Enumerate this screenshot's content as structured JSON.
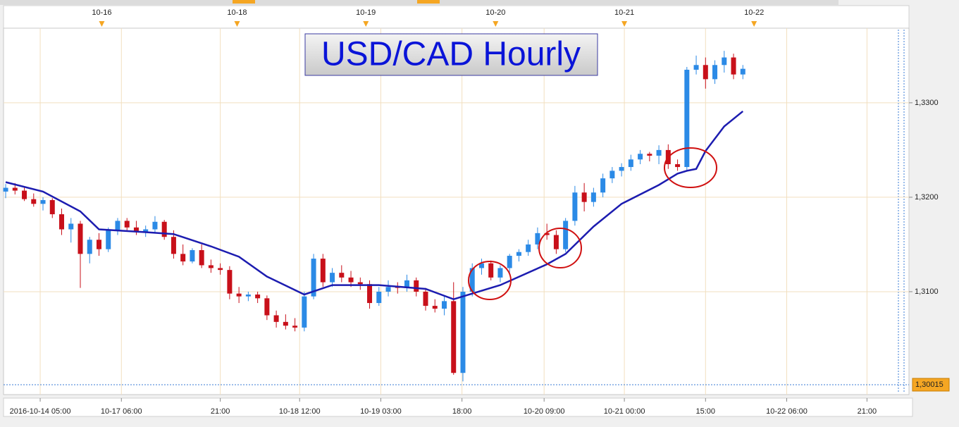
{
  "chart_data": {
    "type": "candlestick",
    "title": "USD/CAD Hourly",
    "candles": {
      "up_color": "#2b8ae6",
      "down_color": "#c8101a",
      "open": [
        1.3206,
        1.321,
        1.3207,
        1.3198,
        1.3193,
        1.3197,
        1.3182,
        1.3166,
        1.3172,
        1.314,
        1.3155,
        1.3145,
        1.3165,
        1.3175,
        1.3168,
        1.3163,
        1.3166,
        1.3174,
        1.3158,
        1.314,
        1.3132,
        1.3144,
        1.3128,
        1.3125,
        1.3123,
        1.3098,
        1.3095,
        1.3097,
        1.3093,
        1.3075,
        1.3068,
        1.3064,
        1.3062,
        1.3095,
        1.3135,
        1.311,
        1.312,
        1.3115,
        1.311,
        1.3108,
        1.3088,
        1.31,
        1.3105,
        1.3104,
        1.3112,
        1.31,
        1.3085,
        1.3082,
        1.309,
        1.3014,
        1.31,
        1.3125,
        1.313,
        1.3115,
        1.3125,
        1.3138,
        1.3142,
        1.315,
        1.3162,
        1.316,
        1.3145,
        1.3175,
        1.3205,
        1.3195,
        1.3205,
        1.322,
        1.3228,
        1.3232,
        1.324,
        1.3246,
        1.3244,
        1.325,
        1.3235,
        1.3232,
        1.3335,
        1.334,
        1.3325,
        1.334,
        1.3348,
        1.333
      ],
      "high": [
        1.3214,
        1.3215,
        1.321,
        1.3204,
        1.32,
        1.3199,
        1.3188,
        1.3178,
        1.3175,
        1.3158,
        1.3162,
        1.3168,
        1.3178,
        1.3178,
        1.3175,
        1.317,
        1.318,
        1.3176,
        1.3165,
        1.315,
        1.3146,
        1.315,
        1.3134,
        1.313,
        1.3127,
        1.3105,
        1.31,
        1.31,
        1.3096,
        1.308,
        1.3076,
        1.3072,
        1.31,
        1.314,
        1.314,
        1.3125,
        1.3128,
        1.3122,
        1.3115,
        1.3112,
        1.3105,
        1.3112,
        1.311,
        1.3118,
        1.3115,
        1.3104,
        1.3092,
        1.3095,
        1.311,
        1.3105,
        1.313,
        1.3135,
        1.3133,
        1.3128,
        1.314,
        1.3145,
        1.3155,
        1.3168,
        1.3172,
        1.3165,
        1.3178,
        1.3212,
        1.3215,
        1.321,
        1.3225,
        1.3232,
        1.3236,
        1.3245,
        1.325,
        1.3248,
        1.3255,
        1.3256,
        1.324,
        1.3338,
        1.335,
        1.3348,
        1.3345,
        1.3355,
        1.3352,
        1.334
      ],
      "low": [
        1.3199,
        1.3203,
        1.3196,
        1.319,
        1.3186,
        1.3178,
        1.316,
        1.3152,
        1.3104,
        1.313,
        1.3138,
        1.3142,
        1.316,
        1.3165,
        1.316,
        1.3158,
        1.3162,
        1.3155,
        1.3135,
        1.3128,
        1.313,
        1.3125,
        1.312,
        1.3118,
        1.3092,
        1.3088,
        1.309,
        1.3088,
        1.307,
        1.3062,
        1.306,
        1.3058,
        1.3058,
        1.3092,
        1.3105,
        1.3105,
        1.311,
        1.3105,
        1.3102,
        1.3082,
        1.3085,
        1.3095,
        1.3098,
        1.31,
        1.3095,
        1.308,
        1.3078,
        1.3075,
        1.3012,
        1.3005,
        1.3095,
        1.3118,
        1.3112,
        1.311,
        1.312,
        1.3132,
        1.3138,
        1.3145,
        1.3155,
        1.314,
        1.3142,
        1.317,
        1.3185,
        1.319,
        1.32,
        1.3215,
        1.3222,
        1.3228,
        1.3235,
        1.3238,
        1.3235,
        1.323,
        1.3228,
        1.3228,
        1.333,
        1.3315,
        1.332,
        1.3332,
        1.3325,
        1.3325
      ],
      "close": [
        1.321,
        1.3207,
        1.3198,
        1.3193,
        1.3197,
        1.3182,
        1.3166,
        1.3172,
        1.314,
        1.3155,
        1.3145,
        1.3165,
        1.3175,
        1.3168,
        1.3163,
        1.3166,
        1.3174,
        1.3158,
        1.314,
        1.3132,
        1.3144,
        1.3128,
        1.3125,
        1.3123,
        1.3098,
        1.3095,
        1.3097,
        1.3093,
        1.3075,
        1.3068,
        1.3064,
        1.3062,
        1.3095,
        1.3135,
        1.311,
        1.312,
        1.3115,
        1.311,
        1.3108,
        1.3088,
        1.31,
        1.3105,
        1.3104,
        1.3112,
        1.31,
        1.3085,
        1.3082,
        1.309,
        1.3014,
        1.31,
        1.3125,
        1.313,
        1.3115,
        1.3125,
        1.3138,
        1.3142,
        1.315,
        1.3162,
        1.316,
        1.3145,
        1.3175,
        1.3205,
        1.3195,
        1.3205,
        1.322,
        1.3228,
        1.3232,
        1.324,
        1.3246,
        1.3244,
        1.325,
        1.3235,
        1.3232,
        1.3335,
        1.334,
        1.3325,
        1.334,
        1.3348,
        1.333,
        1.3336
      ]
    },
    "moving_average": {
      "color": "#1c1cb0",
      "x": [
        0,
        4,
        8,
        10,
        15,
        18,
        22,
        25,
        28,
        32,
        35,
        40,
        45,
        48,
        53,
        58,
        60,
        63,
        66,
        70,
        72,
        73,
        74,
        75,
        77,
        79
      ],
      "values": [
        1.3216,
        1.3206,
        1.3185,
        1.3166,
        1.3163,
        1.3161,
        1.3148,
        1.3137,
        1.3116,
        1.3097,
        1.3107,
        1.3107,
        1.3103,
        1.3092,
        1.3107,
        1.3129,
        1.314,
        1.3169,
        1.3193,
        1.3213,
        1.3225,
        1.3228,
        1.323,
        1.3249,
        1.3275,
        1.3291
      ]
    },
    "price_marker": {
      "value": 1.30015,
      "label": "1,30015",
      "color": "#f5a623"
    },
    "xlim": [
      -0.23,
      96.8
    ],
    "ylim": [
      1.3,
      1.3379
    ],
    "yticks": [
      {
        "value": 1.33,
        "label": "1,3300"
      },
      {
        "value": 1.32,
        "label": "1,3200"
      },
      {
        "value": 1.31,
        "label": "1,3100"
      }
    ],
    "xticks": [
      {
        "value": 3.7,
        "label": "2016-10-14 05:00"
      },
      {
        "value": 12.4,
        "label": "10-17 06:00"
      },
      {
        "value": 23.0,
        "label": "21:00"
      },
      {
        "value": 31.5,
        "label": "10-18 12:00"
      },
      {
        "value": 40.2,
        "label": "10-19 03:00"
      },
      {
        "value": 48.9,
        "label": "18:00"
      },
      {
        "value": 57.7,
        "label": "10-20 09:00"
      },
      {
        "value": 66.3,
        "label": "10-21 00:00"
      },
      {
        "value": 75.0,
        "label": "15:00"
      },
      {
        "value": 83.7,
        "label": "10-22 06:00"
      },
      {
        "value": 92.3,
        "label": "21:00"
      }
    ],
    "top_ticks": [
      {
        "value": 10.3,
        "label": "10-16"
      },
      {
        "value": 24.8,
        "label": "10-18"
      },
      {
        "value": 38.6,
        "label": "10-19"
      },
      {
        "value": 52.5,
        "label": "10-20"
      },
      {
        "value": 66.3,
        "label": "10-21"
      },
      {
        "value": 80.2,
        "label": "10-22"
      }
    ],
    "grid": true
  }
}
